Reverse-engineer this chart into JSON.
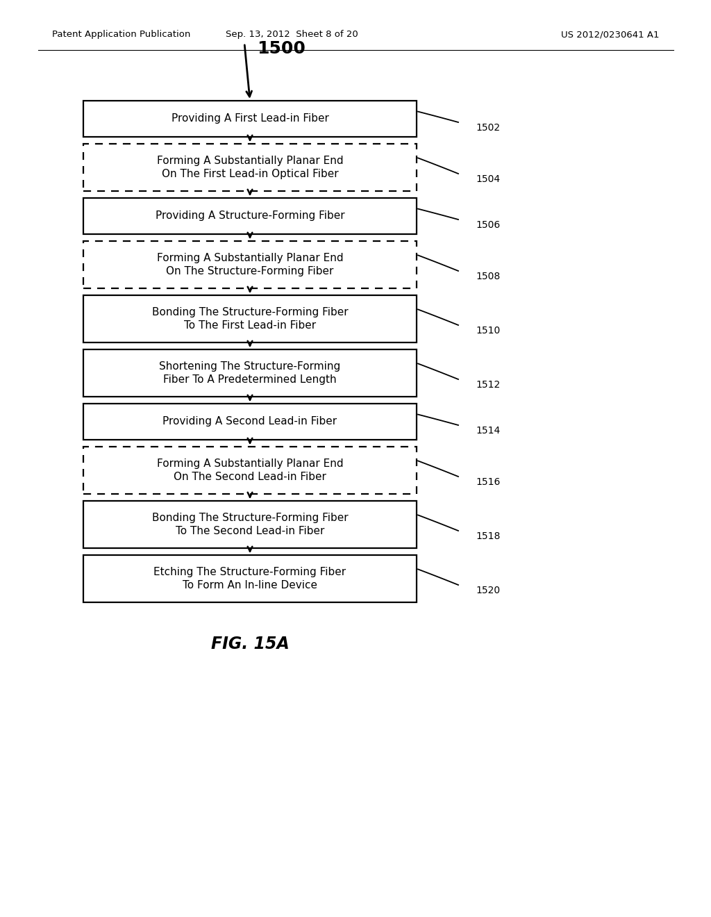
{
  "title": "FIG. 15A",
  "header_left": "Patent Application Publication",
  "header_center": "Sep. 13, 2012  Sheet 8 of 20",
  "header_right": "US 2012/0230641 A1",
  "flow_label": "1500",
  "background_color": "#ffffff",
  "boxes": [
    {
      "id": 0,
      "text": "Providing A First Lead-in Fiber",
      "dashed": false,
      "label": "1502",
      "two_line": false
    },
    {
      "id": 1,
      "text": "Forming A Substantially Planar End\nOn The First Lead-in Optical Fiber",
      "dashed": true,
      "label": "1504",
      "two_line": true
    },
    {
      "id": 2,
      "text": "Providing A Structure-Forming Fiber",
      "dashed": false,
      "label": "1506",
      "two_line": false
    },
    {
      "id": 3,
      "text": "Forming A Substantially Planar End\nOn The Structure-Forming Fiber",
      "dashed": true,
      "label": "1508",
      "two_line": true
    },
    {
      "id": 4,
      "text": "Bonding The Structure-Forming Fiber\nTo The First Lead-in Fiber",
      "dashed": false,
      "label": "1510",
      "two_line": true
    },
    {
      "id": 5,
      "text": "Shortening The Structure-Forming\nFiber To A Predetermined Length",
      "dashed": false,
      "label": "1512",
      "two_line": true
    },
    {
      "id": 6,
      "text": "Providing A Second Lead-in Fiber",
      "dashed": false,
      "label": "1514",
      "two_line": false
    },
    {
      "id": 7,
      "text": "Forming A Substantially Planar End\nOn The Second Lead-in Fiber",
      "dashed": true,
      "label": "1516",
      "two_line": true
    },
    {
      "id": 8,
      "text": "Bonding The Structure-Forming Fiber\nTo The Second Lead-in Fiber",
      "dashed": false,
      "label": "1518",
      "two_line": true
    },
    {
      "id": 9,
      "text": "Etching The Structure-Forming Fiber\nTo Form An In-line Device",
      "dashed": false,
      "label": "1520",
      "two_line": true
    }
  ]
}
